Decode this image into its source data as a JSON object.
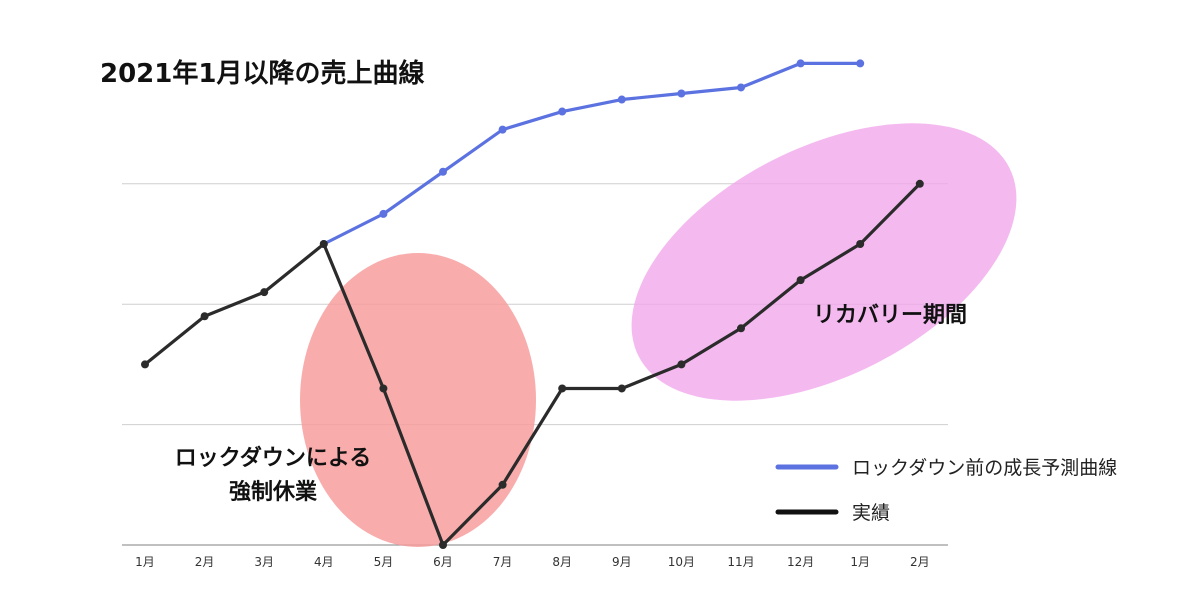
{
  "chart_data": {
    "type": "line",
    "title": "2021年1月以降の売上曲線",
    "categories": [
      "1月",
      "2月",
      "3月",
      "4月",
      "5月",
      "6月",
      "7月",
      "8月",
      "9月",
      "10月",
      "11月",
      "12月",
      "1月",
      "2月"
    ],
    "grid": true,
    "series": [
      {
        "name": "ロックダウン前の成長予測曲線",
        "color": "#5b72e0",
        "values": [
          null,
          null,
          null,
          50,
          55,
          62,
          69,
          72,
          74,
          75,
          76,
          80,
          80,
          null
        ]
      },
      {
        "name": "実績",
        "color": "#2b2b2b",
        "values": [
          30,
          38,
          42,
          50,
          26,
          0,
          10,
          26,
          26,
          30,
          36,
          44,
          50,
          60
        ]
      }
    ],
    "annotations": [
      {
        "id": "lockdown",
        "lines": [
          "ロックダウンによる",
          "強制休業"
        ],
        "color": "#f89a9a"
      },
      {
        "id": "recovery",
        "lines": [
          "リカバリー期間"
        ],
        "color": "#f1a6ec"
      }
    ],
    "legend_position": "bottom-right"
  }
}
